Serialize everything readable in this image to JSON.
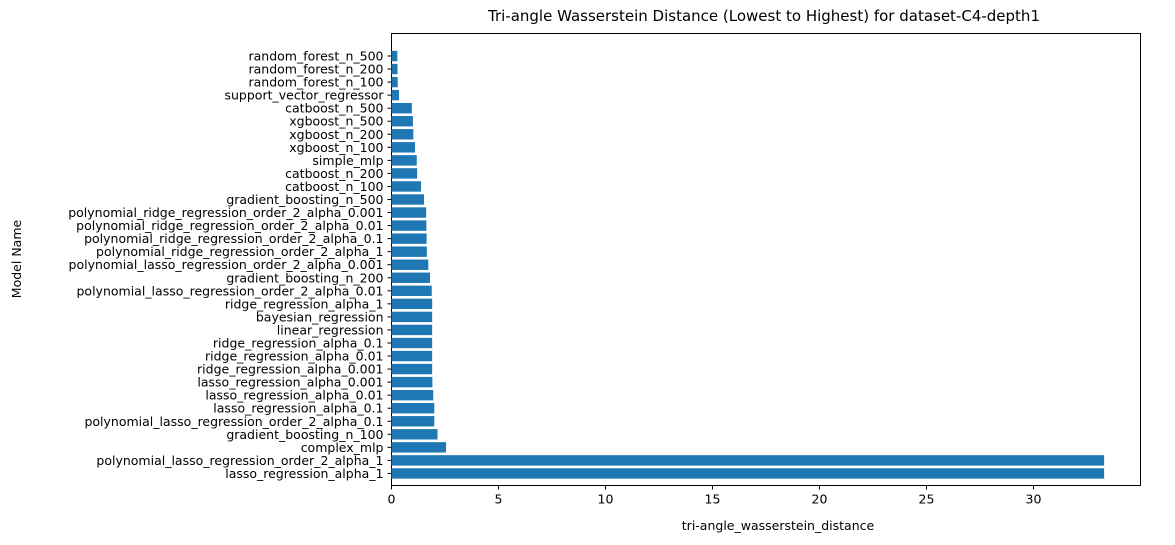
{
  "chart_data": {
    "type": "bar",
    "orientation": "horizontal",
    "title": "Tri-angle Wasserstein Distance (Lowest to Highest) for dataset-C4-depth1",
    "xlabel": "tri-angle_wasserstein_distance",
    "ylabel": "Model Name",
    "xlim": [
      0,
      35
    ],
    "xticks": [
      0,
      5,
      10,
      15,
      20,
      25,
      30
    ],
    "bar_color": "#1f77b4",
    "grid": false,
    "categories": [
      "random_forest_n_500",
      "random_forest_n_200",
      "random_forest_n_100",
      "support_vector_regressor",
      "catboost_n_500",
      "xgboost_n_500",
      "xgboost_n_200",
      "xgboost_n_100",
      "simple_mlp",
      "catboost_n_200",
      "catboost_n_100",
      "gradient_boosting_n_500",
      "polynomial_ridge_regression_order_2_alpha_0.001",
      "polynomial_ridge_regression_order_2_alpha_0.01",
      "polynomial_ridge_regression_order_2_alpha_0.1",
      "polynomial_ridge_regression_order_2_alpha_1",
      "polynomial_lasso_regression_order_2_alpha_0.001",
      "gradient_boosting_n_200",
      "polynomial_lasso_regression_order_2_alpha_0.01",
      "ridge_regression_alpha_1",
      "bayesian_regression",
      "linear_regression",
      "ridge_regression_alpha_0.1",
      "ridge_regression_alpha_0.01",
      "ridge_regression_alpha_0.001",
      "lasso_regression_alpha_0.001",
      "lasso_regression_alpha_0.01",
      "lasso_regression_alpha_0.1",
      "polynomial_lasso_regression_order_2_alpha_0.1",
      "gradient_boosting_n_100",
      "complex_mlp",
      "polynomial_lasso_regression_order_2_alpha_1",
      "lasso_regression_alpha_1"
    ],
    "values": [
      0.27,
      0.28,
      0.29,
      0.35,
      0.95,
      1.0,
      1.02,
      1.1,
      1.18,
      1.2,
      1.38,
      1.52,
      1.62,
      1.63,
      1.64,
      1.65,
      1.72,
      1.8,
      1.88,
      1.9,
      1.9,
      1.9,
      1.9,
      1.9,
      1.9,
      1.91,
      1.95,
      2.0,
      2.0,
      2.15,
      2.55,
      33.3,
      33.3
    ]
  }
}
